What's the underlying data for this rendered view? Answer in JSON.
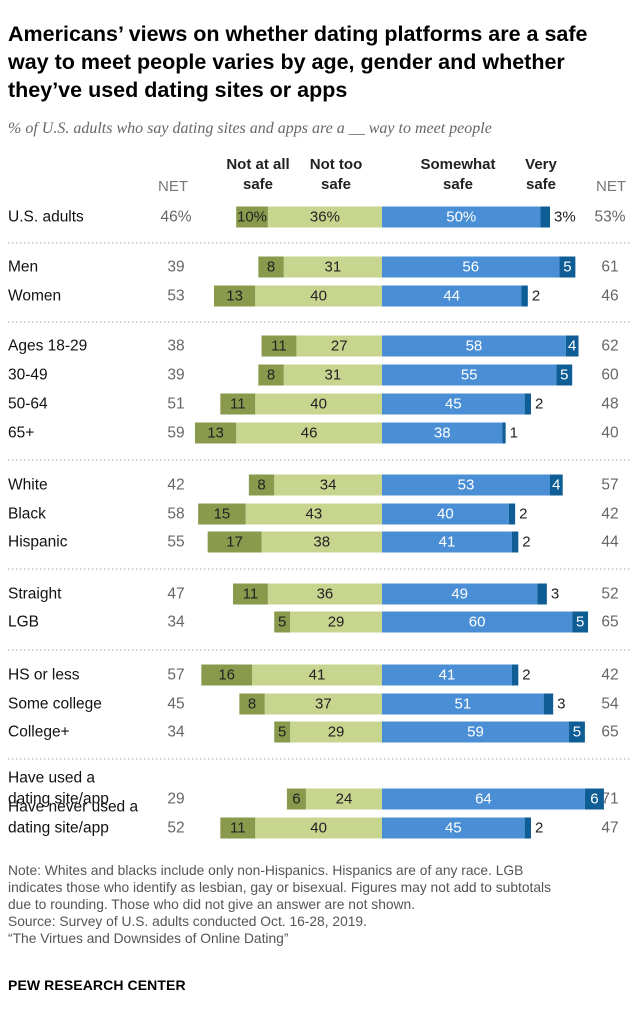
{
  "title": "Americans’ views on whether dating platforms are a safe way to meet people varies by age, gender and whether they’ve used dating sites or apps",
  "subtitle": "% of U.S. adults who say dating sites and apps are a __ way to meet people",
  "headers": {
    "net_left": "NET",
    "not_at_all_safe": "Not at all safe",
    "not_too_safe": "Not too safe",
    "somewhat_safe": "Somewhat safe",
    "very_safe": "Very safe",
    "net_right": "NET"
  },
  "colors": {
    "not_at_all_safe": "#8a9a4d",
    "not_too_safe": "#c7d58f",
    "somewhat_safe": "#4a8fd6",
    "very_safe": "#0e5d94",
    "divider": "#aaaaaa"
  },
  "chart_data": {
    "type": "bar",
    "subtype": "diverging-stacked-horizontal",
    "series_names": [
      "Not at all safe",
      "Not too safe",
      "Somewhat safe",
      "Very safe"
    ],
    "rows": [
      {
        "label": "U.S. adults",
        "net_unsafe": "46%",
        "not_at_all": 10,
        "not_at_all_label": "10%",
        "not_too": 36,
        "not_too_label": "36%",
        "somewhat": 50,
        "somewhat_label": "50%",
        "very": 3,
        "very_label": "3%",
        "net_safe": "53%"
      },
      {
        "label": "Men",
        "net_unsafe": "39",
        "not_at_all": 8,
        "not_at_all_label": "8",
        "not_too": 31,
        "not_too_label": "31",
        "somewhat": 56,
        "somewhat_label": "56",
        "very": 5,
        "very_label": "5",
        "net_safe": "61"
      },
      {
        "label": "Women",
        "net_unsafe": "53",
        "not_at_all": 13,
        "not_at_all_label": "13",
        "not_too": 40,
        "not_too_label": "40",
        "somewhat": 44,
        "somewhat_label": "44",
        "very": 2,
        "very_label": "2",
        "net_safe": "46"
      },
      {
        "label": "Ages 18-29",
        "net_unsafe": "38",
        "not_at_all": 11,
        "not_at_all_label": "11",
        "not_too": 27,
        "not_too_label": "27",
        "somewhat": 58,
        "somewhat_label": "58",
        "very": 4,
        "very_label": "4",
        "net_safe": "62"
      },
      {
        "label": "30-49",
        "net_unsafe": "39",
        "not_at_all": 8,
        "not_at_all_label": "8",
        "not_too": 31,
        "not_too_label": "31",
        "somewhat": 55,
        "somewhat_label": "55",
        "very": 5,
        "very_label": "5",
        "net_safe": "60"
      },
      {
        "label": "50-64",
        "net_unsafe": "51",
        "not_at_all": 11,
        "not_at_all_label": "11",
        "not_too": 40,
        "not_too_label": "40",
        "somewhat": 45,
        "somewhat_label": "45",
        "very": 2,
        "very_label": "2",
        "net_safe": "48"
      },
      {
        "label": "65+",
        "net_unsafe": "59",
        "not_at_all": 13,
        "not_at_all_label": "13",
        "not_too": 46,
        "not_too_label": "46",
        "somewhat": 38,
        "somewhat_label": "38",
        "very": 1,
        "very_label": "1",
        "net_safe": "40"
      },
      {
        "label": "White",
        "net_unsafe": "42",
        "not_at_all": 8,
        "not_at_all_label": "8",
        "not_too": 34,
        "not_too_label": "34",
        "somewhat": 53,
        "somewhat_label": "53",
        "very": 4,
        "very_label": "4",
        "net_safe": "57"
      },
      {
        "label": "Black",
        "net_unsafe": "58",
        "not_at_all": 15,
        "not_at_all_label": "15",
        "not_too": 43,
        "not_too_label": "43",
        "somewhat": 40,
        "somewhat_label": "40",
        "very": 2,
        "very_label": "2",
        "net_safe": "42"
      },
      {
        "label": "Hispanic",
        "net_unsafe": "55",
        "not_at_all": 17,
        "not_at_all_label": "17",
        "not_too": 38,
        "not_too_label": "38",
        "somewhat": 41,
        "somewhat_label": "41",
        "very": 2,
        "very_label": "2",
        "net_safe": "44"
      },
      {
        "label": "Straight",
        "net_unsafe": "47",
        "not_at_all": 11,
        "not_at_all_label": "11",
        "not_too": 36,
        "not_too_label": "36",
        "somewhat": 49,
        "somewhat_label": "49",
        "very": 3,
        "very_label": "3",
        "net_safe": "52"
      },
      {
        "label": "LGB",
        "net_unsafe": "34",
        "not_at_all": 5,
        "not_at_all_label": "5",
        "not_too": 29,
        "not_too_label": "29",
        "somewhat": 60,
        "somewhat_label": "60",
        "very": 5,
        "very_label": "5",
        "net_safe": "65"
      },
      {
        "label": "HS or less",
        "net_unsafe": "57",
        "not_at_all": 16,
        "not_at_all_label": "16",
        "not_too": 41,
        "not_too_label": "41",
        "somewhat": 41,
        "somewhat_label": "41",
        "very": 2,
        "very_label": "2",
        "net_safe": "42"
      },
      {
        "label": "Some college",
        "net_unsafe": "45",
        "not_at_all": 8,
        "not_at_all_label": "8",
        "not_too": 37,
        "not_too_label": "37",
        "somewhat": 51,
        "somewhat_label": "51",
        "very": 3,
        "very_label": "3",
        "net_safe": "54"
      },
      {
        "label": "College+",
        "net_unsafe": "34",
        "not_at_all": 5,
        "not_at_all_label": "5",
        "not_too": 29,
        "not_too_label": "29",
        "somewhat": 59,
        "somewhat_label": "59",
        "very": 5,
        "very_label": "5",
        "net_safe": "65"
      },
      {
        "label": "Have used a dating site/app",
        "label_lines": [
          "Have used a",
          "dating site/app"
        ],
        "net_unsafe": "29",
        "not_at_all": 6,
        "not_at_all_label": "6",
        "not_too": 24,
        "not_too_label": "24",
        "somewhat": 64,
        "somewhat_label": "64",
        "very": 6,
        "very_label": "6",
        "net_safe": "71"
      },
      {
        "label": "Have never used a dating site/app",
        "label_lines": [
          "Have never used a",
          "dating site/app"
        ],
        "net_unsafe": "52",
        "not_at_all": 11,
        "not_at_all_label": "11",
        "not_too": 40,
        "not_too_label": "40",
        "somewhat": 45,
        "somewhat_label": "45",
        "very": 2,
        "very_label": "2",
        "net_safe": "47"
      }
    ],
    "groups": [
      [
        0
      ],
      [
        1,
        2
      ],
      [
        3,
        4,
        5,
        6
      ],
      [
        7,
        8,
        9
      ],
      [
        10,
        11
      ],
      [
        12,
        13,
        14
      ],
      [
        15,
        16
      ]
    ]
  },
  "note_lines": [
    "Note: Whites and blacks include only non-Hispanics. Hispanics are of any race. LGB",
    "indicates those who identify as lesbian, gay or bisexual. Figures may not add to subtotals",
    "due to rounding. Those who did not give an answer are not shown.",
    "Source: Survey of U.S. adults conducted Oct. 16-28, 2019.",
    "“The Virtues and Downsides of Online Dating”"
  ],
  "source_org": "PEW RESEARCH CENTER"
}
